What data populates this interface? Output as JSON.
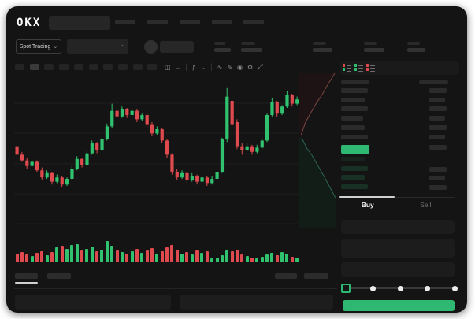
{
  "app": {
    "logo": "OKX"
  },
  "colors": {
    "green": "#30c26f",
    "red": "#df4a4e",
    "button_green": "#2eb871",
    "window_bg": "#141414",
    "skeleton": "#2b2b2b",
    "grid": "#1e1e1e",
    "depth_ask_fill": "#1e1314",
    "depth_ask_line": "#7c4642",
    "depth_bid_fill": "#121d17",
    "depth_bid_line": "#2c6652"
  },
  "top_nav": {
    "item_widths": [
      26,
      26,
      26,
      25,
      26
    ]
  },
  "market_header": {
    "selector_label": "Spot Trading",
    "selector_chevron": "⌄",
    "pair_chevron": "⌄",
    "stats": [
      {
        "label_w": 14,
        "value_w": 21
      },
      {
        "label_w": 18,
        "value_w": 27
      },
      {
        "label_w": 17,
        "value_w": 25
      },
      {
        "label_w": 16,
        "value_w": 26
      },
      {
        "label_w": 16,
        "value_w": 23
      }
    ]
  },
  "toolbar": {
    "timeframes": {
      "count": 10,
      "active_index": 1
    },
    "icons": [
      {
        "name": "candle-style-icon",
        "glyph": "◫"
      },
      {
        "name": "chevron-down-icon",
        "glyph": "⌄"
      },
      {
        "name": "separator",
        "glyph": "|"
      },
      {
        "name": "indicators-icon",
        "glyph": "ƒ"
      },
      {
        "name": "chevron-down-icon",
        "glyph": "⌄"
      },
      {
        "name": "separator",
        "glyph": "|"
      },
      {
        "name": "line-chart-icon",
        "glyph": "∿"
      },
      {
        "name": "draw-icon",
        "glyph": "✎"
      },
      {
        "name": "snapshot-icon",
        "glyph": "◉"
      },
      {
        "name": "settings-icon",
        "glyph": "⚙"
      },
      {
        "name": "fullscreen-icon",
        "glyph": "⤢"
      }
    ]
  },
  "order_book": {
    "view_toggles": [
      {
        "name": "book-view-both",
        "top": "#df4a4e",
        "bottom": "#30c26f"
      },
      {
        "name": "book-view-bids",
        "top": "#30c26f",
        "bottom": "#30c26f"
      },
      {
        "name": "book-view-asks",
        "top": "#df4a4e",
        "bottom": "#df4a4e"
      }
    ],
    "header": {
      "left_w": 36,
      "right_w": 37
    },
    "asks": [
      {
        "price_w": 34,
        "amount_w": 22
      },
      {
        "price_w": 30,
        "amount_w": 20
      },
      {
        "price_w": 34,
        "amount_w": 22
      },
      {
        "price_w": 28,
        "amount_w": 20
      },
      {
        "price_w": 30,
        "amount_w": 22
      },
      {
        "price_w": 34,
        "amount_w": 20
      },
      {
        "price_w": 0,
        "amount_w": 22
      }
    ],
    "last_price": {
      "w": 36,
      "h": 11,
      "color": "#2eb871"
    },
    "bids": [
      {
        "price_w": 30,
        "amount_w": 0
      },
      {
        "price_w": 34,
        "amount_w": 22
      },
      {
        "price_w": 30,
        "amount_w": 20
      },
      {
        "price_w": 34,
        "amount_w": 22
      }
    ]
  },
  "trade_panel": {
    "tabs": {
      "buy": "Buy",
      "sell": "Sell",
      "active": "buy"
    },
    "field_heights": [
      18,
      23,
      19
    ],
    "slider": {
      "stops": 5,
      "active_stop": 0
    }
  },
  "bottom_tabs": {
    "left_widths": [
      29,
      30
    ],
    "right_widths": [
      28,
      31
    ],
    "active_index": 0
  },
  "chart_data": {
    "type": "candlestick",
    "price_scale": {
      "min": 0,
      "max": 100
    },
    "gridline_values": [
      88.3,
      67.2,
      45.6,
      24.4,
      3.3
    ],
    "candles": [
      [
        58,
        61,
        51,
        52
      ],
      [
        52,
        54,
        47,
        48
      ],
      [
        48,
        50,
        42,
        44
      ],
      [
        44,
        49,
        43,
        47
      ],
      [
        47,
        48,
        40,
        41
      ],
      [
        41,
        43,
        34,
        36
      ],
      [
        36,
        41,
        35,
        39
      ],
      [
        39,
        40,
        31,
        33
      ],
      [
        33,
        38,
        32,
        36
      ],
      [
        36,
        37,
        29,
        31
      ],
      [
        31,
        36,
        30,
        35
      ],
      [
        35,
        44,
        34,
        42
      ],
      [
        42,
        51,
        41,
        49
      ],
      [
        49,
        50,
        43,
        45
      ],
      [
        45,
        55,
        44,
        53
      ],
      [
        53,
        62,
        52,
        60
      ],
      [
        60,
        61,
        53,
        55
      ],
      [
        55,
        65,
        54,
        63
      ],
      [
        63,
        74,
        62,
        72
      ],
      [
        72,
        88,
        71,
        83
      ],
      [
        83,
        85,
        77,
        79
      ],
      [
        79,
        86,
        78,
        84
      ],
      [
        84,
        85,
        78,
        80
      ],
      [
        80,
        85,
        79,
        83
      ],
      [
        83,
        84,
        75,
        77
      ],
      [
        77,
        81,
        76,
        80
      ],
      [
        80,
        81,
        71,
        73
      ],
      [
        73,
        75,
        65,
        67
      ],
      [
        67,
        72,
        66,
        70
      ],
      [
        70,
        71,
        60,
        62
      ],
      [
        62,
        63,
        50,
        52
      ],
      [
        52,
        53,
        38,
        40
      ],
      [
        40,
        42,
        34,
        36
      ],
      [
        36,
        41,
        35,
        39
      ],
      [
        39,
        40,
        32,
        34
      ],
      [
        34,
        39,
        33,
        37
      ],
      [
        37,
        38,
        31,
        33
      ],
      [
        33,
        38,
        32,
        36
      ],
      [
        36,
        37,
        30,
        32
      ],
      [
        32,
        37,
        31,
        35
      ],
      [
        35,
        41,
        34,
        40
      ],
      [
        40,
        64,
        39,
        63
      ],
      [
        63,
        99,
        61,
        93
      ],
      [
        90,
        94,
        71,
        73
      ],
      [
        75,
        77,
        56,
        58
      ],
      [
        58,
        60,
        52,
        55
      ],
      [
        55,
        60,
        54,
        58
      ],
      [
        58,
        59,
        52,
        54
      ],
      [
        54,
        59,
        53,
        57
      ],
      [
        57,
        64,
        56,
        62
      ],
      [
        62,
        81,
        61,
        80
      ],
      [
        80,
        92,
        79,
        89
      ],
      [
        89,
        90,
        79,
        81
      ],
      [
        81,
        87,
        80,
        86
      ],
      [
        86,
        97,
        85,
        94
      ],
      [
        94,
        95,
        86,
        88
      ],
      [
        88,
        93,
        87,
        91
      ]
    ],
    "volume": [
      10,
      12,
      9,
      7,
      11,
      13,
      8,
      12,
      18,
      20,
      16,
      21,
      22,
      14,
      16,
      19,
      13,
      15,
      26,
      20,
      14,
      12,
      10,
      13,
      16,
      11,
      14,
      17,
      10,
      13,
      18,
      21,
      15,
      10,
      12,
      9,
      14,
      11,
      13,
      4,
      5,
      8,
      14,
      13,
      15,
      9,
      7,
      5,
      4,
      6,
      9,
      11,
      8,
      12,
      10,
      6,
      5
    ],
    "depth": {
      "ask_line": [
        [
          2,
          79
        ],
        [
          8,
          62
        ],
        [
          13,
          53
        ],
        [
          21,
          39
        ],
        [
          29,
          27
        ],
        [
          37,
          13
        ],
        [
          45,
          0
        ]
      ],
      "bid_line": [
        [
          3,
          82
        ],
        [
          10,
          96
        ],
        [
          16,
          104
        ],
        [
          24,
          118
        ],
        [
          32,
          132
        ],
        [
          40,
          147
        ],
        [
          46,
          158
        ]
      ]
    }
  }
}
